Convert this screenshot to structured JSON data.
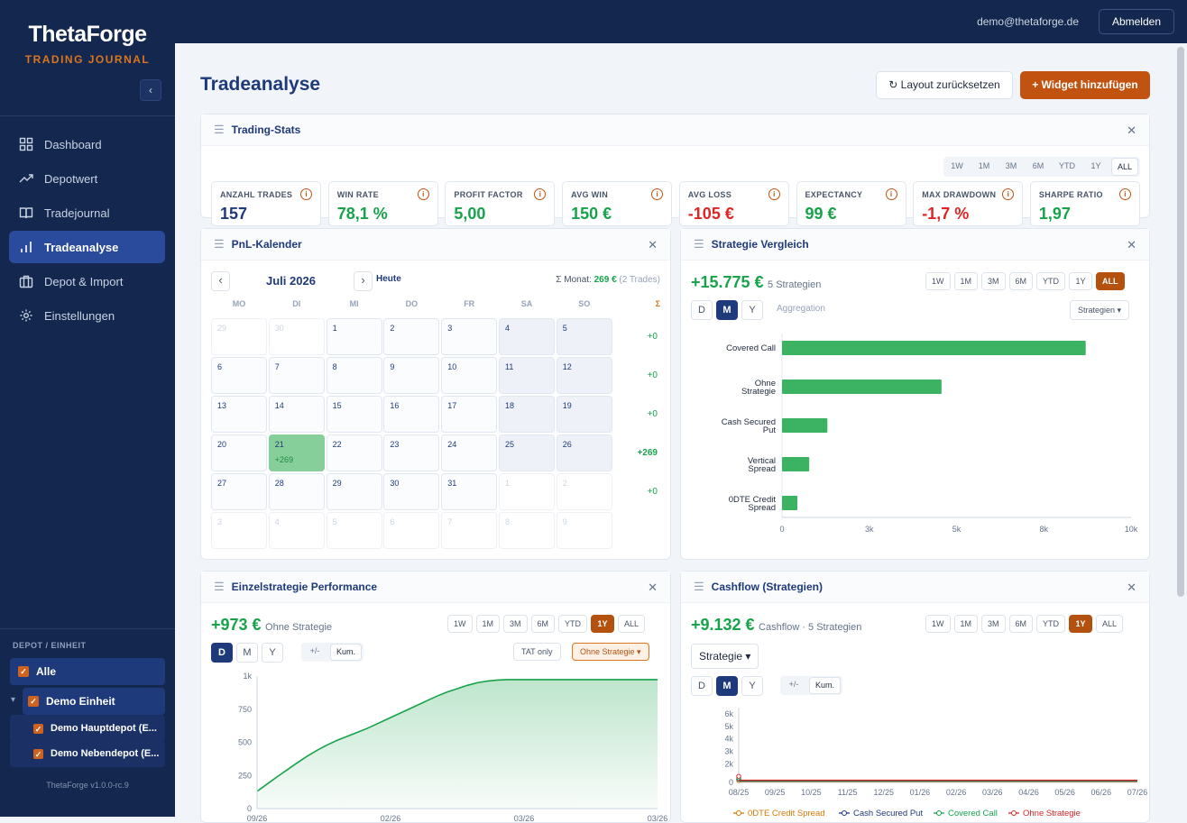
{
  "brand": {
    "name": "ThetaForge",
    "subtitle": "TRADING JOURNAL",
    "collapse": "‹"
  },
  "nav": [
    {
      "label": "Dashboard",
      "icon": "grid-icon"
    },
    {
      "label": "Depotwert",
      "icon": "trend-icon"
    },
    {
      "label": "Tradejournal",
      "icon": "book-icon"
    },
    {
      "label": "Tradeanalyse",
      "icon": "bar-chart-icon",
      "active": true
    },
    {
      "label": "Depot & Import",
      "icon": "briefcase-icon"
    },
    {
      "label": "Einstellungen",
      "icon": "gear-icon"
    }
  ],
  "depot": {
    "title": "DEPOT / EINHEIT",
    "items": [
      {
        "label": "Alle"
      },
      {
        "label": "Demo Einheit",
        "toggle": "▾"
      },
      {
        "label": "Demo Hauptdepot (E..."
      },
      {
        "label": "Demo Nebendepot (E..."
      }
    ]
  },
  "version": "ThetaForge v1.0.0-rc.9",
  "topbar": {
    "email": "demo@thetaforge.de",
    "logout": "Abmelden"
  },
  "page": {
    "title": "Tradeanalyse",
    "reset_label": "↻ Layout zurücksetzen",
    "add_label": "+ Widget hinzufügen"
  },
  "stats": {
    "title": "Trading-Stats",
    "periods": [
      "1W",
      "1M",
      "3M",
      "6M",
      "YTD",
      "1Y",
      "ALL"
    ],
    "active_period": "ALL",
    "cards": [
      {
        "label": "ANZAHL TRADES",
        "value": "157",
        "color": "#1e3a7a"
      },
      {
        "label": "WIN RATE",
        "value": "78,1 %",
        "color": "#16a34a"
      },
      {
        "label": "PROFIT FACTOR",
        "value": "5,00",
        "color": "#16a34a"
      },
      {
        "label": "AVG WIN",
        "value": "150 €",
        "color": "#16a34a"
      },
      {
        "label": "AVG LOSS",
        "value": "-105 €",
        "color": "#dc2626"
      },
      {
        "label": "EXPECTANCY",
        "value": "99 €",
        "color": "#16a34a"
      },
      {
        "label": "MAX DRAWDOWN",
        "value": "-1,7 %",
        "color": "#dc2626"
      },
      {
        "label": "SHARPE RATIO",
        "value": "1,97",
        "color": "#16a34a"
      }
    ]
  },
  "calendar": {
    "title": "PnL-Kalender",
    "month": "Juli 2026",
    "prev": "‹",
    "next": "›",
    "today": "Heute",
    "summary_prefix": "Σ Monat:",
    "summary_value": "269 €",
    "summary_trades": "(2 Trades)",
    "weekdays": [
      "MO",
      "DI",
      "MI",
      "DO",
      "FR",
      "SA",
      "SO"
    ],
    "sigma": "Σ",
    "weeks": [
      {
        "days": [
          "29",
          "30",
          "1",
          "2",
          "3",
          "4",
          "5"
        ],
        "total": "+0"
      },
      {
        "days": [
          "6",
          "7",
          "8",
          "9",
          "10",
          "11",
          "12"
        ],
        "total": "+0"
      },
      {
        "days": [
          "13",
          "14",
          "15",
          "16",
          "17",
          "18",
          "19"
        ],
        "total": "+0"
      },
      {
        "days": [
          "20",
          "21",
          "22",
          "23",
          "24",
          "25",
          "26"
        ],
        "total": "+269"
      },
      {
        "days": [
          "27",
          "28",
          "29",
          "30",
          "31",
          "1",
          "2"
        ],
        "total": "+0"
      },
      {
        "days": [
          "3",
          "4",
          "5",
          "6",
          "7",
          "8",
          "9"
        ],
        "total": ""
      }
    ],
    "win_day": {
      "day": "21",
      "pnl": "+269"
    }
  },
  "strategy_compare": {
    "title": "Strategie Vergleich",
    "total": "+15.775 €",
    "subtitle": "5 Strategien",
    "periods": [
      "1W",
      "1M",
      "3M",
      "6M",
      "YTD",
      "1Y",
      "ALL"
    ],
    "active_period": "ALL",
    "agg": [
      "D",
      "M",
      "Y"
    ],
    "active_agg": "M",
    "agg_label": "Aggregation",
    "dropdown": "Strategien ▾"
  },
  "single_perf": {
    "title": "Einzelstrategie Performance",
    "total": "+973 €",
    "subtitle": "Ohne Strategie",
    "periods": [
      "1W",
      "1M",
      "3M",
      "6M",
      "YTD",
      "1Y",
      "ALL"
    ],
    "active_period": "1Y",
    "agg": [
      "D",
      "M",
      "Y"
    ],
    "active_agg": "D",
    "mode": [
      "+/-",
      "Kum."
    ],
    "active_mode": "Kum.",
    "tat_label": "TAT only",
    "strategy_select": "Ohne Strategie ▾"
  },
  "cashflow": {
    "title": "Cashflow (Strategien)",
    "total": "+9.132 €",
    "subtitle": "Cashflow · 5 Strategien",
    "periods": [
      "1W",
      "1M",
      "3M",
      "6M",
      "YTD",
      "1Y",
      "ALL"
    ],
    "active_period": "1Y",
    "group_select": "Strategie ▾",
    "agg": [
      "D",
      "M",
      "Y"
    ],
    "active_agg": "M",
    "mode": [
      "+/-",
      "Kum."
    ],
    "active_mode": "Kum."
  },
  "chart_data": [
    {
      "type": "bar",
      "orientation": "horizontal",
      "categories": [
        "Covered Call",
        "Ohne Strategie",
        "Cash Secured Put",
        "Vertical Spread",
        "0DTE Credit Spread"
      ],
      "values": [
        8700,
        4570,
        1300,
        780,
        440
      ],
      "xlim": [
        0,
        10000
      ],
      "xticks": [
        "0",
        "3k",
        "5k",
        "8k",
        "10k"
      ],
      "color": "#3bb362",
      "grid": false
    },
    {
      "type": "area",
      "series": [
        {
          "values": [
            130,
            185,
            240,
            292,
            345,
            395,
            440,
            480,
            515,
            545,
            575,
            605,
            640,
            675,
            710,
            745,
            780,
            815,
            850,
            880,
            905,
            930,
            950,
            962,
            970,
            973,
            973,
            973,
            973,
            973,
            973,
            973,
            973,
            973,
            973,
            973,
            973,
            973,
            973,
            973,
            973
          ]
        }
      ],
      "ylim": [
        0,
        1000
      ],
      "yticks": [
        "0",
        "250",
        "500",
        "750",
        "1k"
      ],
      "xticks": [
        "09/26",
        "02/26",
        "03/26",
        "03/26"
      ],
      "color": "#16a34a",
      "grid": false
    },
    {
      "type": "line",
      "categories": [
        "08/25",
        "09/25",
        "10/25",
        "11/25",
        "12/25",
        "01/26",
        "02/26",
        "03/26",
        "04/26",
        "05/26",
        "06/26",
        "07/26"
      ],
      "series": [
        {
          "name": "0DTE Credit Spread",
          "color": "#d97706",
          "values": [
            0,
            0,
            0,
            0,
            0,
            0,
            0,
            0,
            0,
            0,
            0,
            0
          ]
        },
        {
          "name": "Cash Secured Put",
          "color": "#1e3a7a",
          "values": [
            0,
            0,
            0,
            0,
            0,
            0,
            0,
            0,
            0,
            0,
            0,
            0
          ]
        },
        {
          "name": "Covered Call",
          "color": "#16a34a",
          "values": [
            0,
            0,
            0,
            0,
            0,
            0,
            0,
            0,
            0,
            0,
            0,
            0
          ]
        },
        {
          "name": "Ohne Strategie",
          "color": "#dc2626",
          "values": [
            0,
            0,
            0,
            0,
            0,
            0,
            0,
            0,
            0,
            0,
            0,
            0
          ]
        }
      ],
      "yticks": [
        "0",
        "2k",
        "3k",
        "4k",
        "5k",
        "6k"
      ],
      "ylim": [
        0,
        6000
      ],
      "legend": "bottom"
    }
  ]
}
